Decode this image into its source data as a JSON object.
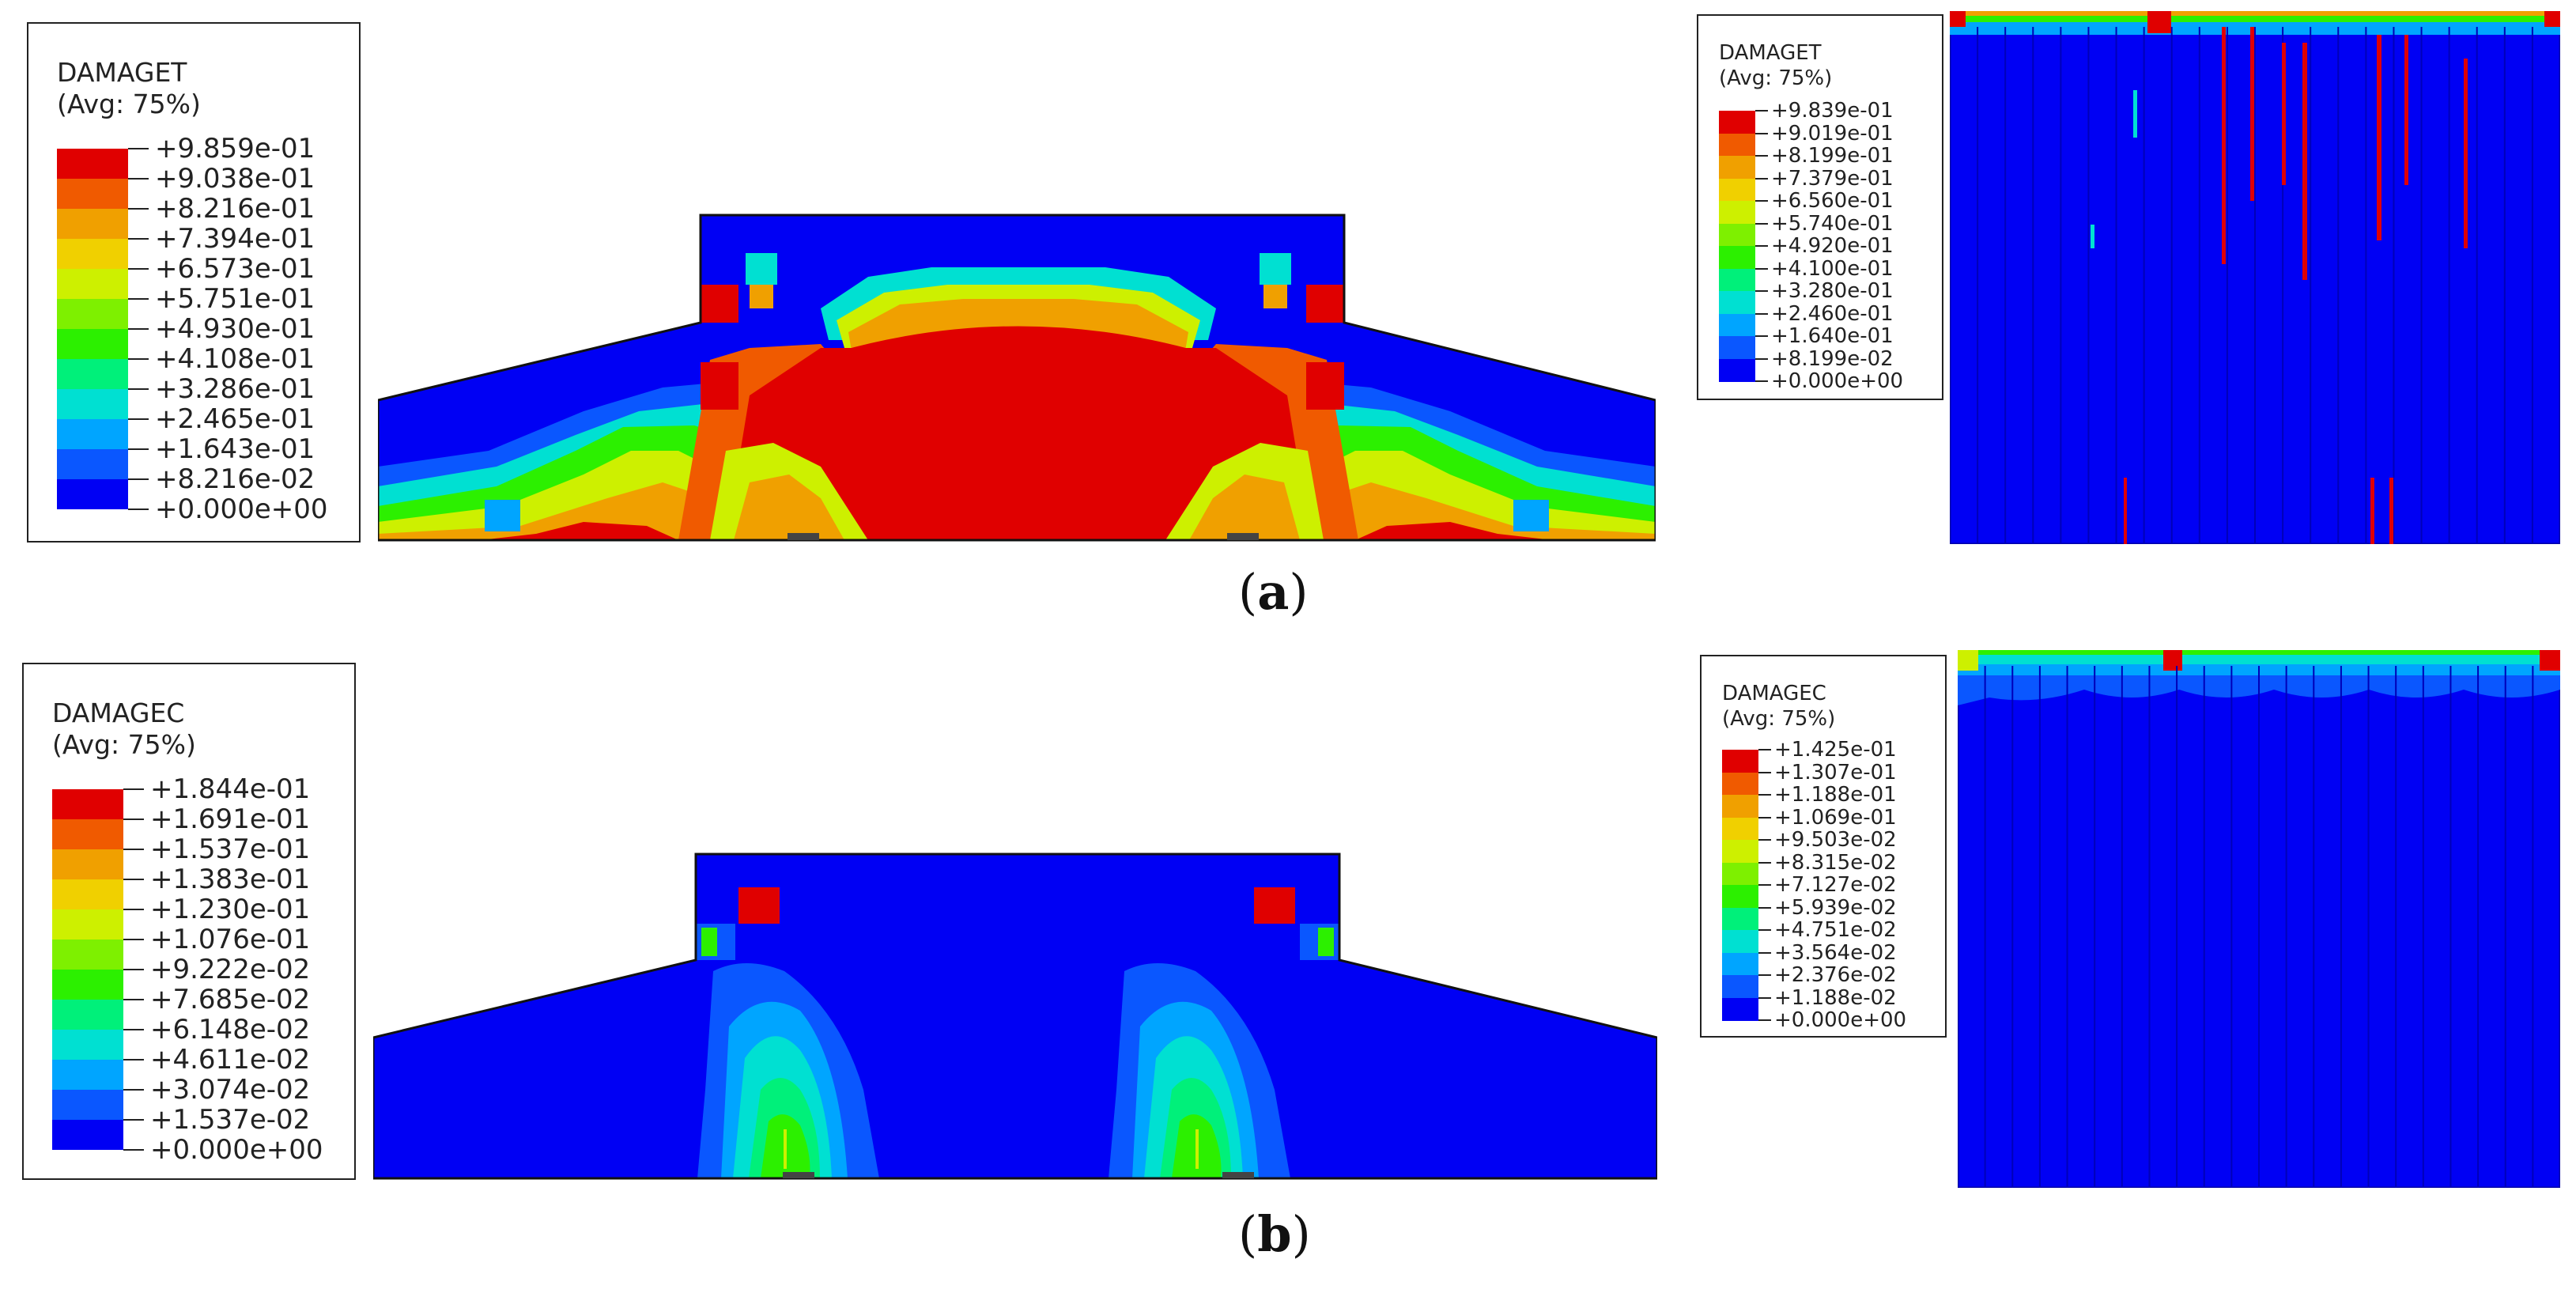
{
  "colors": {
    "scale": [
      "#0000f4",
      "#0a57ff",
      "#00a5ff",
      "#00e0d2",
      "#00f07a",
      "#2cf000",
      "#7ef000",
      "#cdf000",
      "#f0d000",
      "#f0a000",
      "#f05a00",
      "#e00000"
    ]
  },
  "legends": [
    {
      "id": "legend-a-left",
      "title": "DAMAGET",
      "subtitle": "(Avg: 75%)",
      "values": [
        "+9.859e-01",
        "+9.038e-01",
        "+8.216e-01",
        "+7.394e-01",
        "+6.573e-01",
        "+5.751e-01",
        "+4.930e-01",
        "+4.108e-01",
        "+3.286e-01",
        "+2.465e-01",
        "+1.643e-01",
        "+8.216e-02",
        "+0.000e+00"
      ]
    },
    {
      "id": "legend-a-right",
      "title": "DAMAGET",
      "subtitle": "(Avg: 75%)",
      "values": [
        "+9.839e-01",
        "+9.019e-01",
        "+8.199e-01",
        "+7.379e-01",
        "+6.560e-01",
        "+5.740e-01",
        "+4.920e-01",
        "+4.100e-01",
        "+3.280e-01",
        "+2.460e-01",
        "+1.640e-01",
        "+8.199e-02",
        "+0.000e+00"
      ]
    },
    {
      "id": "legend-b-left",
      "title": "DAMAGEC",
      "subtitle": "(Avg: 75%)",
      "values": [
        "+1.844e-01",
        "+1.691e-01",
        "+1.537e-01",
        "+1.383e-01",
        "+1.230e-01",
        "+1.076e-01",
        "+9.222e-02",
        "+7.685e-02",
        "+6.148e-02",
        "+4.611e-02",
        "+3.074e-02",
        "+1.537e-02",
        "+0.000e+00"
      ]
    },
    {
      "id": "legend-b-right",
      "title": "DAMAGEC",
      "subtitle": "(Avg: 75%)",
      "values": [
        "+1.425e-01",
        "+1.307e-01",
        "+1.188e-01",
        "+1.069e-01",
        "+9.503e-02",
        "+8.315e-02",
        "+7.127e-02",
        "+5.939e-02",
        "+4.751e-02",
        "+3.564e-02",
        "+2.376e-02",
        "+1.188e-02",
        "+0.000e+00"
      ]
    }
  ],
  "captions": {
    "a": "a",
    "b": "b"
  }
}
